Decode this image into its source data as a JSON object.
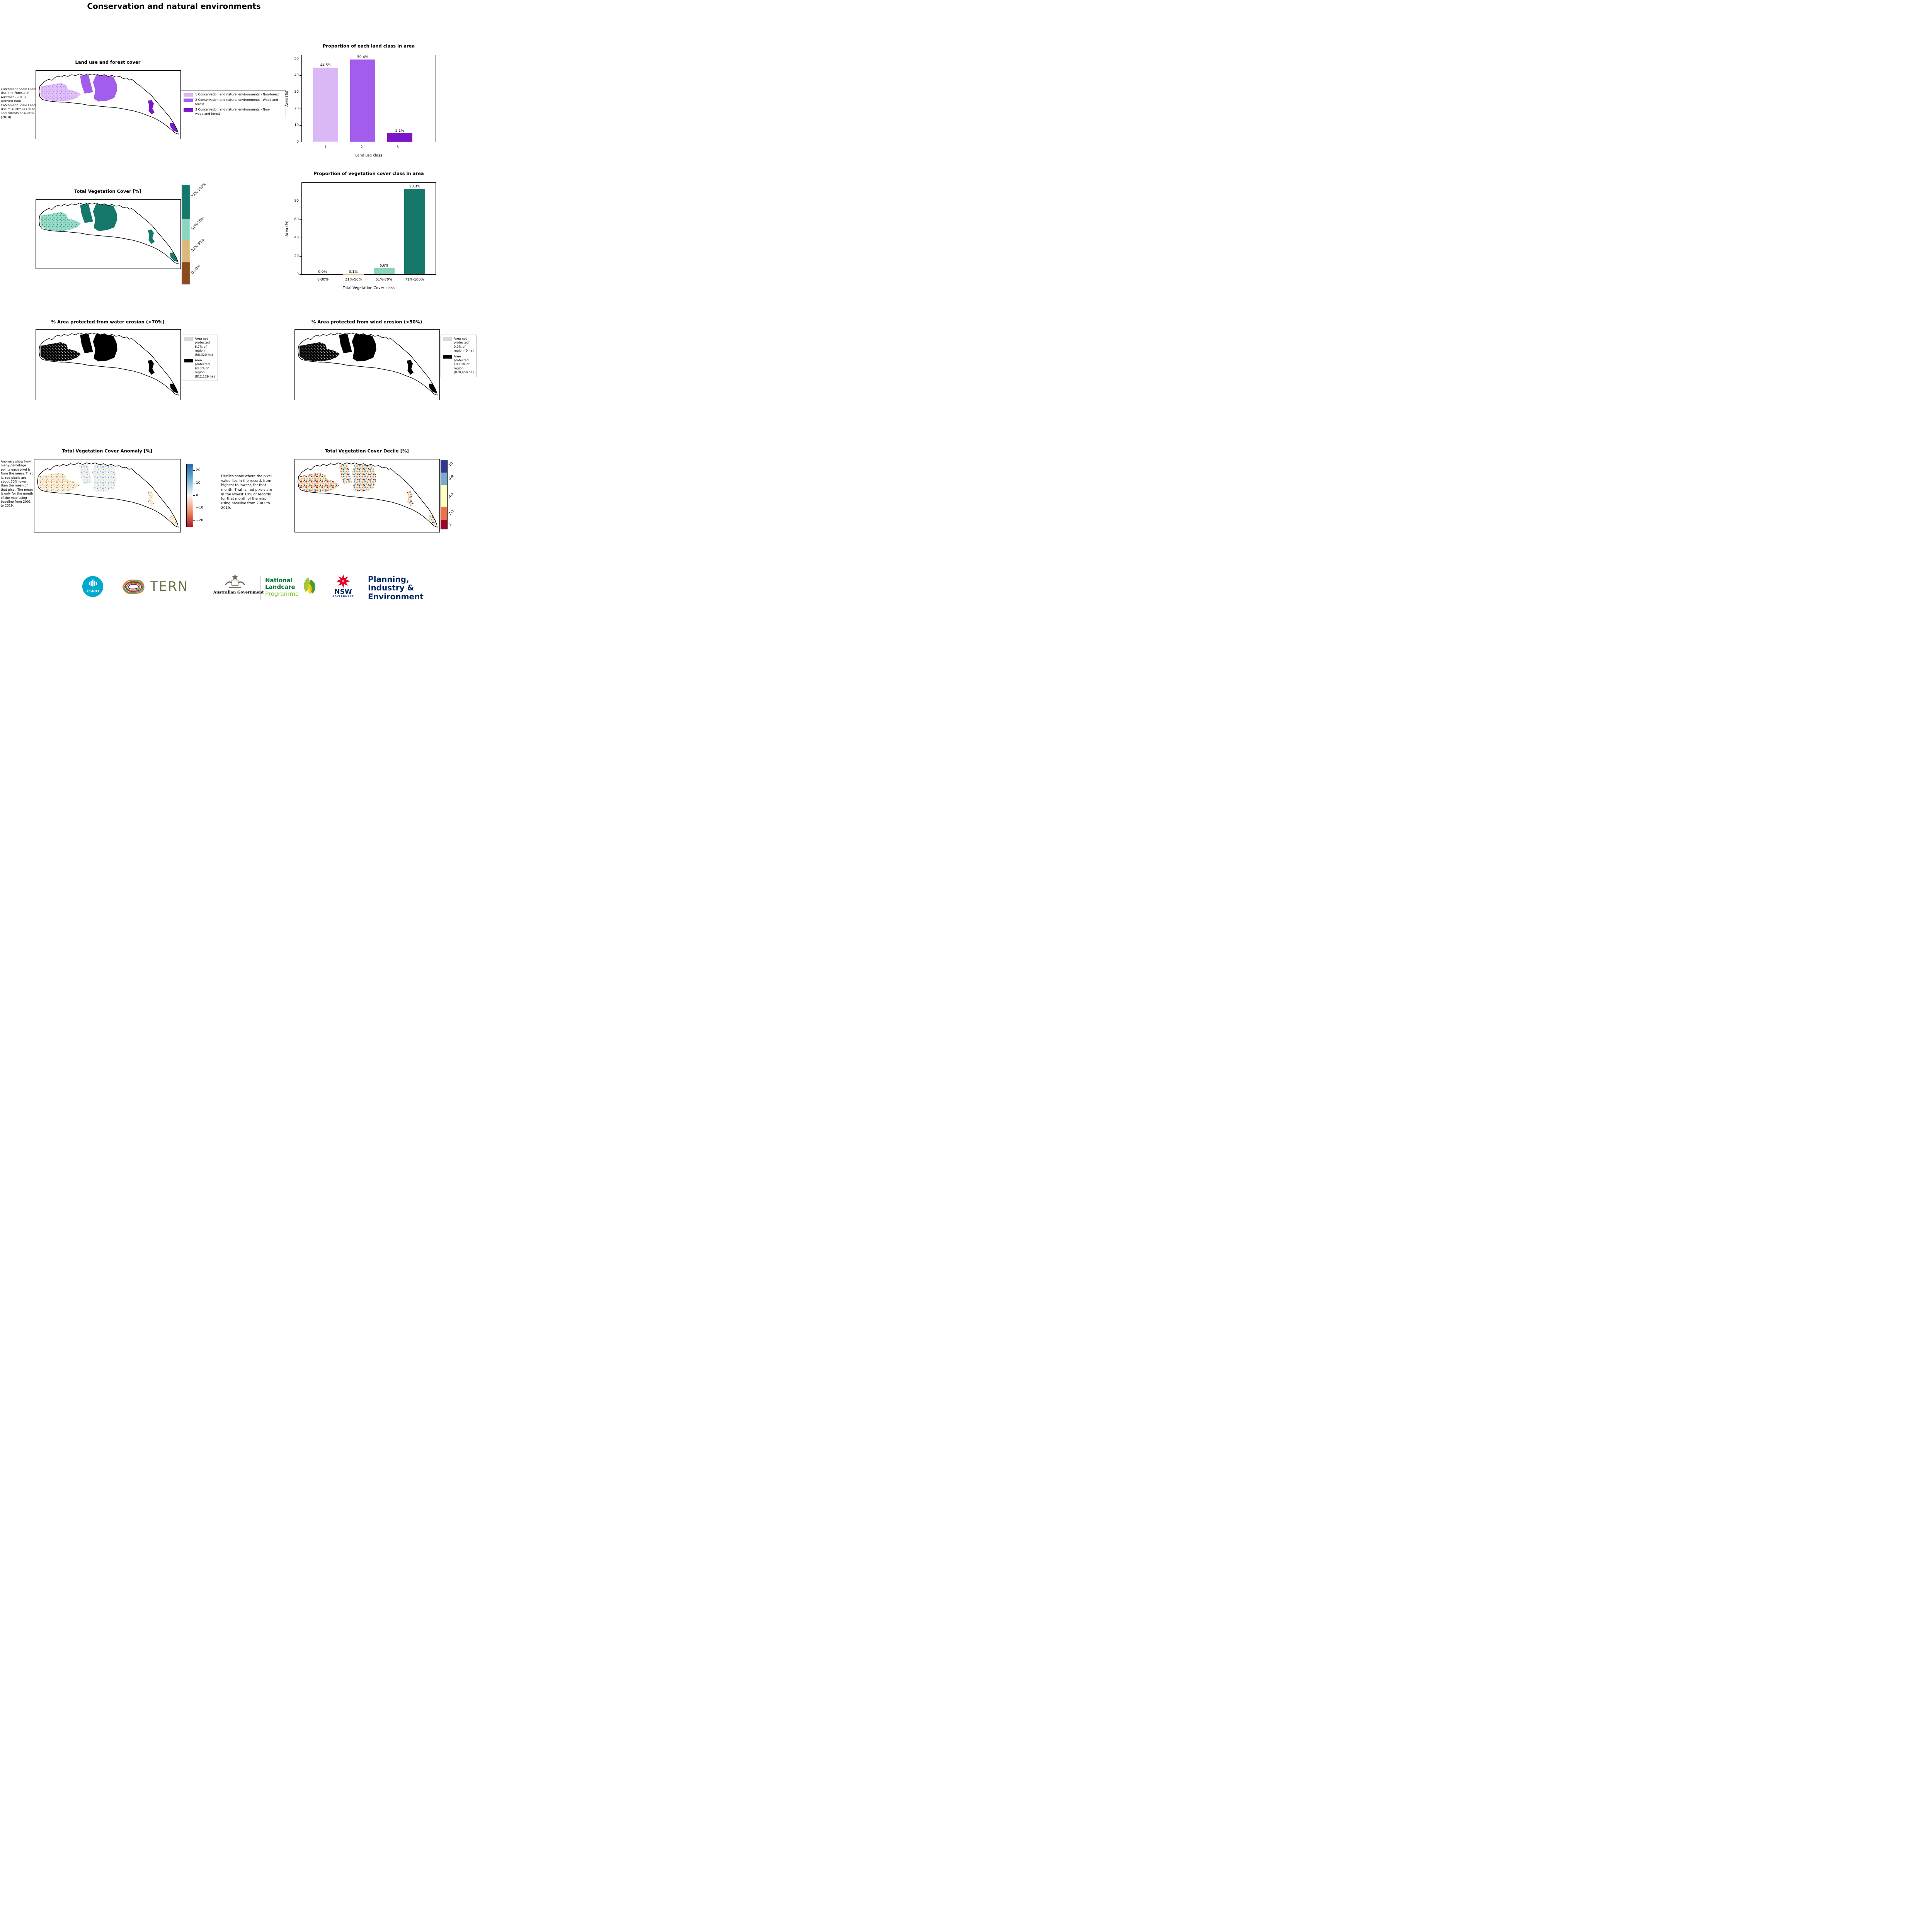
{
  "page": {
    "title": "Conservation and natural environments"
  },
  "landuse": {
    "title": "Land use and forest cover",
    "caption": "Catchment Scale Land Use and Forests of Australia (2018). Derived from Catchment Scale Land Use of Australia (2018) and Forests of Australia (2018)",
    "legend": [
      {
        "label": "1 Conservation and natural environments - Non-forest",
        "color": "#d9b8f5"
      },
      {
        "label": "2 Conservation and natural environments - Woodland forest",
        "color": "#a25ded"
      },
      {
        "label": "3 Conservation and natural environments - Non-woodland forest",
        "color": "#7a17c9"
      }
    ]
  },
  "vegcover": {
    "title": "Total Vegetation Cover [%]",
    "colorbar": [
      {
        "label": "71%-100%",
        "color": "#15786b"
      },
      {
        "label": "51%-70%",
        "color": "#8ad4c0"
      },
      {
        "label": "31%-50%",
        "color": "#d9b97c"
      },
      {
        "label": "0-30%",
        "color": "#8a4b1f"
      }
    ]
  },
  "water_erosion": {
    "title": "% Area protected from water erosion (>70%)",
    "legend": [
      {
        "label": "Area not protected 6.7% of region (58,320 ha)",
        "color": "#d9d9d9"
      },
      {
        "label": "Area protected 93.3% of region (812,129 ha)",
        "color": "#000000"
      }
    ]
  },
  "wind_erosion": {
    "title": "% Area protected from wind erosion (>50%)",
    "legend": [
      {
        "label": "Area not protected 0.0% of region (0 ha)",
        "color": "#d9d9d9"
      },
      {
        "label": "Area protected 100.0% of region (870,450 ha)",
        "color": "#000000"
      }
    ]
  },
  "anomaly": {
    "title": "Total Vegetation Cover Anomaly [%]",
    "caption": "Anomaly show how many percetage points each pixel is from the mean. That is, red pixels are about 20% lower than the mean of that pixel. The mean is only for the month of the map using baseline from 2001 to 2019.",
    "colorbar_ticks": [
      "20",
      "10",
      "0",
      "−10",
      "−20"
    ],
    "colorbar_colors": {
      "top": "#2166ac",
      "mid": "#f7f7f7",
      "bottom": "#b2182b"
    }
  },
  "decile": {
    "title": "Total Vegetation Cover Decile [%]",
    "caption": "Deciles show where the pixel value lies in the record, from highest to lowest, for that month. That is, red pixels are in the lowest 10% of records for that month of the map using baseline from 2001 to 2019.",
    "colorbar": [
      {
        "label": "10",
        "color": "#313695"
      },
      {
        "label": "8-9",
        "color": "#74add1"
      },
      {
        "label": "4-7",
        "color": "#ffffbf"
      },
      {
        "label": "2-3",
        "color": "#f46d43"
      },
      {
        "label": "1",
        "color": "#a50026"
      }
    ]
  },
  "chart_data": [
    {
      "type": "bar",
      "title": "Proportion of each land class in area",
      "categories": [
        "1",
        "2",
        "3"
      ],
      "values": [
        44.5,
        50.4,
        5.1
      ],
      "labels": [
        "44.5%",
        "50.4%",
        "5.1%"
      ],
      "colors": [
        "#d9b8f5",
        "#a25ded",
        "#7a17c9"
      ],
      "xlabel": "Land use class",
      "ylabel": "Area (%)",
      "ylim": [
        0,
        52
      ],
      "yticks": [
        0,
        10,
        20,
        30,
        40,
        50
      ],
      "legend_position": "none",
      "grid": false
    },
    {
      "type": "bar",
      "title": "Proportion of vegetation cover class in area",
      "categories": [
        "0-30%",
        "31%-50%",
        "51%-70%",
        "71%-100%"
      ],
      "values": [
        0.0,
        0.1,
        6.6,
        93.3
      ],
      "labels": [
        "0.0%",
        "0.1%",
        "6.6%",
        "93.3%"
      ],
      "colors": [
        "#8a4b1f",
        "#d9b97c",
        "#8ad4c0",
        "#15786b"
      ],
      "xlabel": "Total Vegetation Cover class",
      "ylabel": "Area (%)",
      "ylim": [
        0,
        100
      ],
      "yticks": [
        0,
        20,
        40,
        60,
        80
      ],
      "legend_position": "none",
      "grid": false
    }
  ],
  "footer": {
    "csiro_label": "CSIRO",
    "tern_label": "TERN",
    "aus_gov_label": "Australian Government",
    "landcare": {
      "line1": "National",
      "line2": "Landcare",
      "line3": "Programme"
    },
    "nsw_label": "NSW",
    "nsw_sub_label": "GOVERNMENT",
    "dept": {
      "line1": "Planning,",
      "line2": "Industry &",
      "line3": "Environment"
    }
  }
}
